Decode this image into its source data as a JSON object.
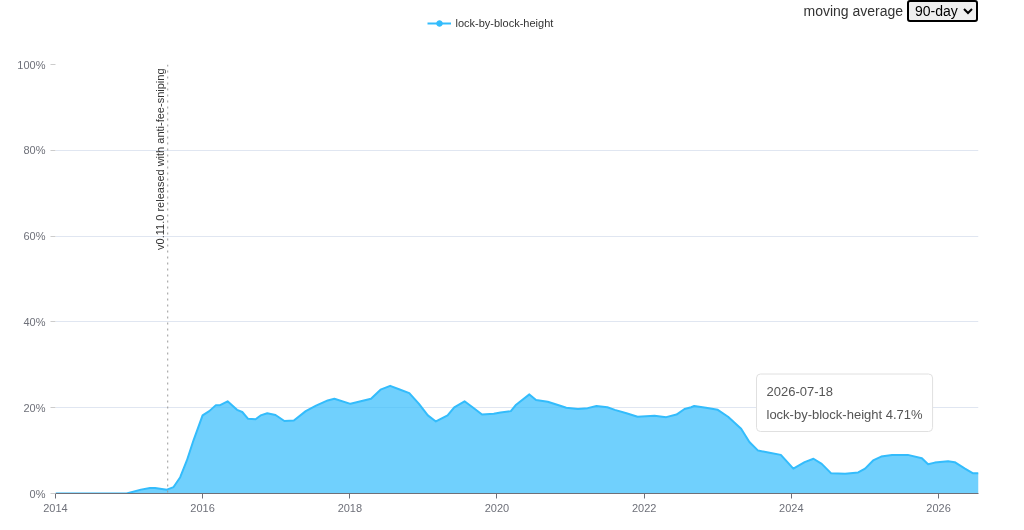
{
  "chart_data": {
    "type": "area",
    "x": [
      "2014-01-01",
      "2014-12-20",
      "2015-03-01",
      "2015-04-15",
      "2015-05-10",
      "2015-07-08",
      "2015-08-10",
      "2015-09-12",
      "2015-10-15",
      "2015-11-17",
      "2016-01-01",
      "2016-02-03",
      "2016-03-07",
      "2016-03-28",
      "2016-05-04",
      "2016-06-20",
      "2016-07-16",
      "2016-08-14",
      "2016-09-20",
      "2016-10-15",
      "2016-11-17",
      "2016-12-28",
      "2017-02-10",
      "2017-03-29",
      "2017-05-27",
      "2017-07-17",
      "2017-09-13",
      "2017-10-16",
      "2018-01-04",
      "2018-02-24",
      "2018-04-16",
      "2018-06-02",
      "2018-07-20",
      "2018-09-02",
      "2018-10-23",
      "2018-12-10",
      "2019-01-23",
      "2019-03-04",
      "2019-05-01",
      "2019-06-03",
      "2019-07-24",
      "2019-09-02",
      "2019-10-19",
      "2019-12-16",
      "2020-01-19",
      "2020-03-10",
      "2020-04-05",
      "2020-06-10",
      "2020-07-13",
      "2020-09-09",
      "2020-11-14",
      "2020-12-10",
      "2021-02-06",
      "2021-03-26",
      "2021-05-09",
      "2021-07-02",
      "2021-08-08",
      "2021-10-05",
      "2021-11-29",
      "2022-02-21",
      "2022-04-20",
      "2022-06-10",
      "2022-07-20",
      "2022-08-22",
      "2022-09-06",
      "2022-11-03",
      "2023-01-01",
      "2023-02-21",
      "2023-04-27",
      "2023-06-07",
      "2023-07-20",
      "2023-09-15",
      "2023-11-10",
      "2024-01-11",
      "2024-03-07",
      "2024-04-20",
      "2024-05-31",
      "2024-07-17",
      "2024-09-24",
      "2024-11-28",
      "2025-01-01",
      "2025-02-10",
      "2025-03-22",
      "2025-05-15",
      "2025-08-01",
      "2025-10-10",
      "2025-11-10",
      "2025-12-13",
      "2026-02-17",
      "2026-03-22",
      "2026-05-12",
      "2026-06-21",
      "2026-07-18"
    ],
    "series": [
      {
        "name": "lock-by-block-height",
        "color": "#33bcfc",
        "values": [
          0,
          0,
          0.9,
          1.3,
          1.3,
          0.9,
          1.5,
          3.8,
          7.7,
          12.4,
          18.2,
          19.2,
          20.6,
          20.6,
          21.5,
          19.5,
          19.0,
          17.4,
          17.3,
          18.2,
          18.7,
          18.3,
          16.9,
          17.0,
          19.2,
          20.5,
          21.7,
          22.1,
          20.9,
          21.5,
          22.1,
          24.2,
          25.1,
          24.3,
          23.4,
          20.9,
          18.2,
          16.8,
          18.2,
          20.1,
          21.5,
          20.1,
          18.4,
          18.6,
          18.9,
          19.2,
          20.7,
          23.1,
          21.8,
          21.4,
          20.4,
          20.0,
          19.7,
          19.9,
          20.4,
          20.1,
          19.5,
          18.7,
          17.9,
          18.1,
          17.8,
          18.4,
          19.7,
          20.1,
          20.4,
          20.0,
          19.5,
          17.9,
          15.1,
          12.0,
          10.0,
          9.5,
          9.0,
          5.8,
          7.3,
          8.1,
          6.9,
          4.7,
          4.6,
          4.9,
          5.8,
          7.7,
          8.6,
          9.0,
          9.0,
          8.2,
          6.8,
          7.2,
          7.5,
          7.3,
          5.8,
          4.7,
          4.71
        ]
      }
    ],
    "xlim": [
      "2014-01-01",
      "2026-07-18"
    ],
    "xticks": [
      "2014",
      "2016",
      "2018",
      "2020",
      "2022",
      "2024",
      "2026"
    ],
    "ylim": [
      0,
      100
    ],
    "yticks": [
      {
        "value": 0,
        "label": "0%"
      },
      {
        "value": 20,
        "label": "20%"
      },
      {
        "value": 40,
        "label": "40%"
      },
      {
        "value": 60,
        "label": "60%"
      },
      {
        "value": 80,
        "label": "80%"
      },
      {
        "value": 100,
        "label": "100%"
      }
    ],
    "ref_lines": [
      {
        "axis": "x",
        "value": "2015-07-12",
        "label": "v0.11.0 released with anti-fee-sniping",
        "color": "#999999",
        "line_style": "dotted"
      }
    ],
    "annotations": [
      "moving average",
      "90-day",
      "2026-07-18\nlock-by-block-height 4.71%"
    ],
    "grid": "y",
    "legend": "top"
  }
}
